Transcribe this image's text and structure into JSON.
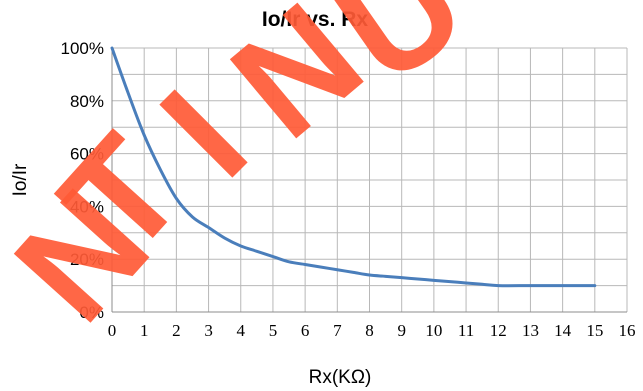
{
  "chart_data": {
    "type": "line",
    "title": "Io/Ir vs. Rx",
    "xlabel": "Rx(KΩ)",
    "ylabel": "Io/Ir",
    "xlim": [
      0,
      16
    ],
    "ylim": [
      0,
      100
    ],
    "x_ticks": [
      "0",
      "1",
      "2",
      "3",
      "4",
      "5",
      "6",
      "7",
      "8",
      "9",
      "10",
      "11",
      "12",
      "13",
      "14",
      "15",
      "16"
    ],
    "y_ticks": [
      "0%",
      "20%",
      "40%",
      "60%",
      "80%",
      "100%"
    ],
    "y_tick_values": [
      0,
      20,
      40,
      60,
      80,
      100
    ],
    "grid": true,
    "series": [
      {
        "x": [
          0,
          0.5,
          1,
          1.5,
          2,
          2.5,
          3,
          3.5,
          4,
          4.5,
          5,
          5.5,
          6,
          6.5,
          7,
          7.5,
          8,
          8.5,
          9,
          9.5,
          10,
          10.5,
          11,
          11.5,
          12,
          13,
          14,
          15
        ],
        "y": [
          100,
          83,
          67,
          54,
          43,
          36,
          32,
          28,
          25,
          23,
          21,
          19,
          18,
          17,
          16,
          15,
          14,
          13.5,
          13,
          12.5,
          12,
          11.5,
          11,
          10.5,
          10,
          10,
          10,
          10
        ]
      }
    ],
    "line_color": "#4a7ebb",
    "watermark_text": "NTINU",
    "watermark_color": "#ff5a36"
  }
}
